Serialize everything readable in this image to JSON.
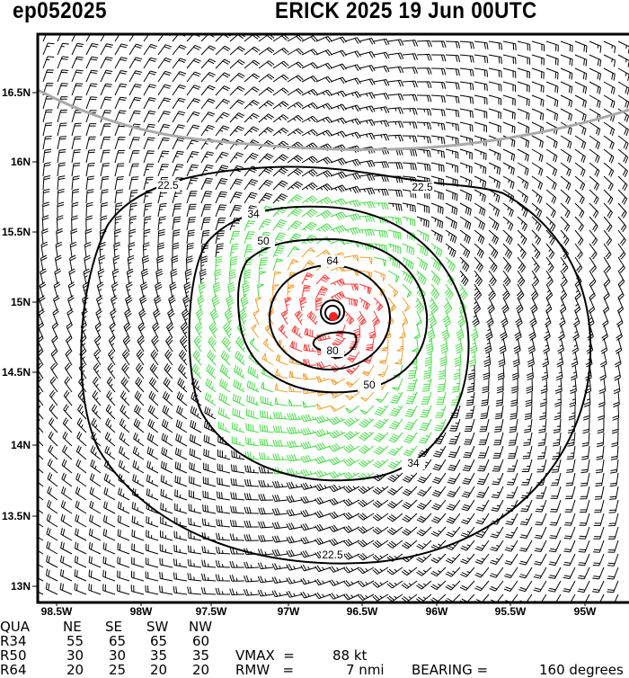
{
  "header": {
    "storm_id": "ep052025",
    "title": "ERICK 2025 19 Jun 00UTC"
  },
  "map": {
    "lat_ticks": [
      "16.5N",
      "16N",
      "15.5N",
      "15N",
      "14.5N",
      "14N",
      "13.5N",
      "13N"
    ],
    "lon_ticks": [
      "98.5W",
      "98W",
      "97.5W",
      "97W",
      "96.5W",
      "96W",
      "95.5W",
      "95W"
    ],
    "storm_center": {
      "lat": 14.9,
      "lon": -96.7
    },
    "contour_labels": [
      "22.5",
      "22.5",
      "34",
      "34",
      "50",
      "50",
      "64",
      "80",
      "22.5"
    ],
    "colors": {
      "below34": "#000000",
      "r34": "#44dd44",
      "r50": "#f0a030",
      "r64": "#ff3b3b",
      "center": "#ff2020",
      "coast": "#aaaaaa"
    }
  },
  "table": {
    "headers": [
      "QUA",
      "NE",
      "SE",
      "SW",
      "NW"
    ],
    "rows": [
      {
        "label": "R34",
        "values": [
          "55",
          "65",
          "65",
          "60"
        ]
      },
      {
        "label": "R50",
        "values": [
          "30",
          "30",
          "35",
          "35"
        ]
      },
      {
        "label": "R64",
        "values": [
          "20",
          "25",
          "20",
          "20"
        ]
      }
    ],
    "vmax_label": "VMAX  =",
    "vmax_value": "88 kt",
    "rmw_label": "RMW   =",
    "rmw_value": "7 nmi",
    "bearing_label": "BEARING =",
    "bearing_value": "160 degrees"
  }
}
